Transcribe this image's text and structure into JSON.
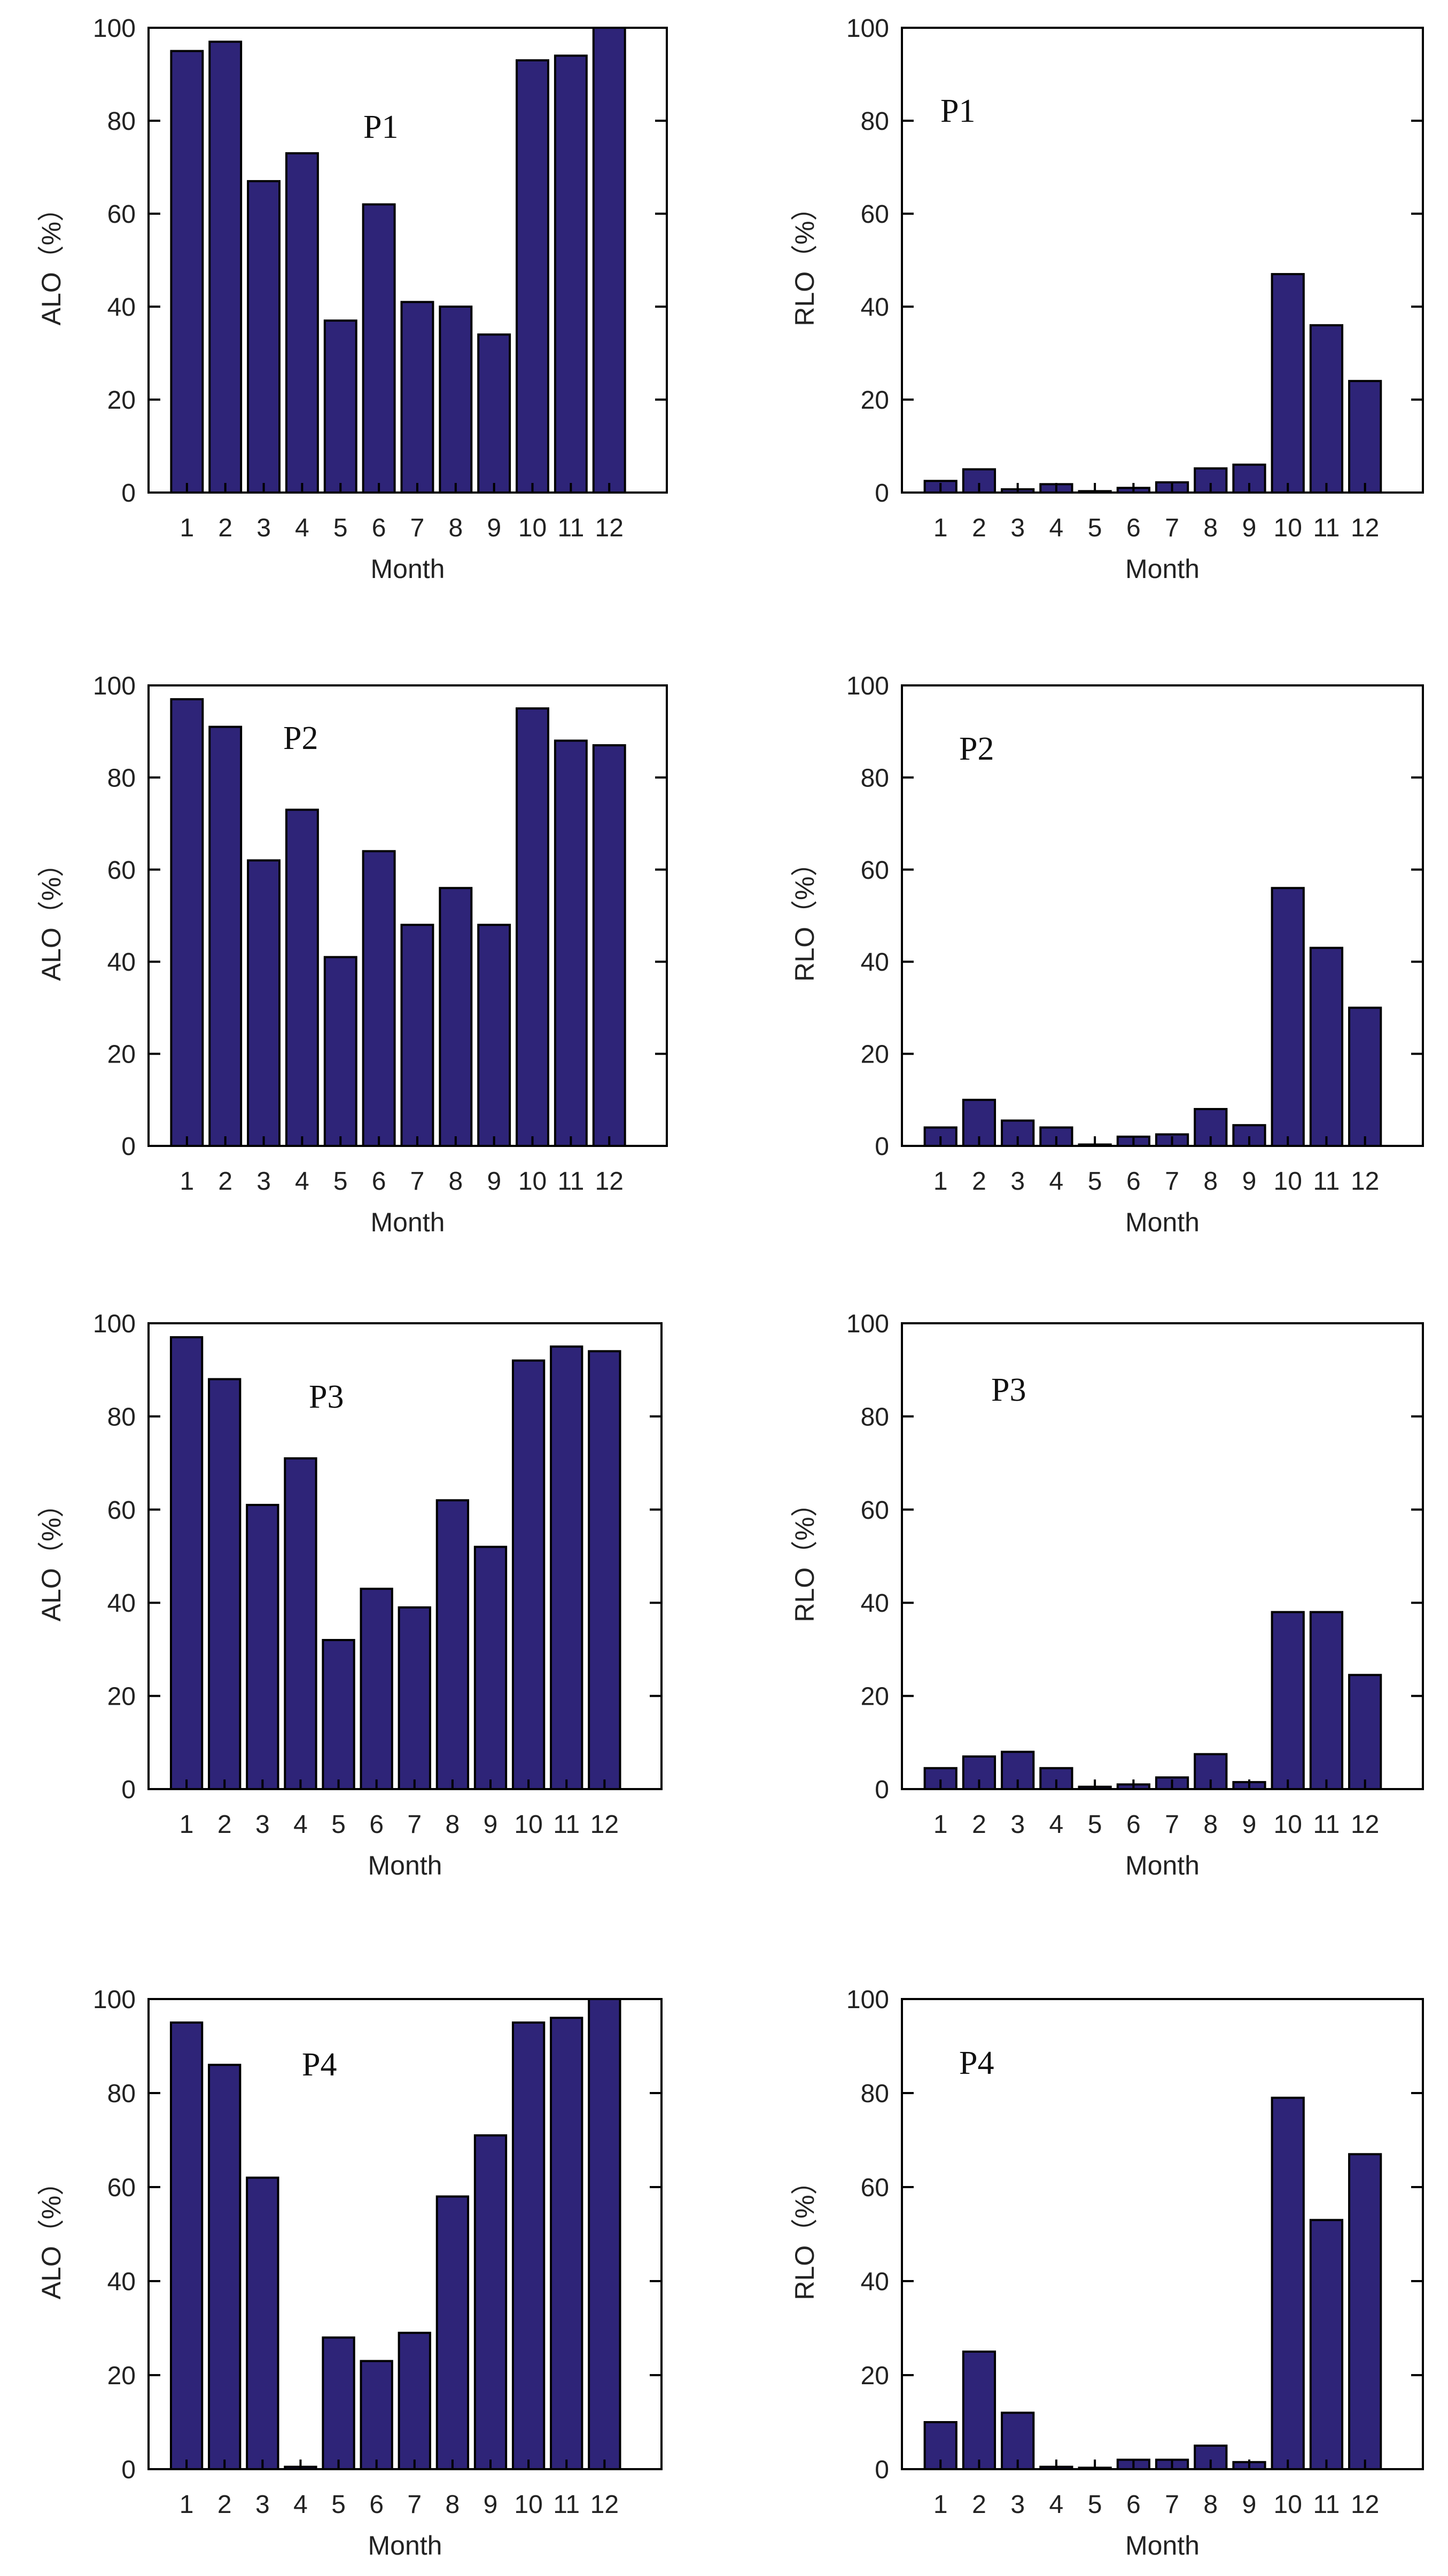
{
  "chart_data": [
    {
      "type": "bar",
      "id": "alo-p1",
      "panel_label": "P1",
      "xlabel": "Month",
      "ylabel": "ALO（%）",
      "categories": [
        "1",
        "2",
        "3",
        "4",
        "5",
        "6",
        "7",
        "8",
        "9",
        "10",
        "11",
        "12"
      ],
      "values": [
        95,
        97,
        67,
        73,
        37,
        62,
        41,
        40,
        34,
        93,
        94,
        100
      ],
      "ylim": [
        0,
        100
      ],
      "yticks": [
        "0",
        "20",
        "40",
        "60",
        "80",
        "100"
      ],
      "grid": false
    },
    {
      "type": "bar",
      "id": "rlo-p1",
      "panel_label": "P1",
      "xlabel": "Month",
      "ylabel": "RLO（%）",
      "categories": [
        "1",
        "2",
        "3",
        "4",
        "5",
        "6",
        "7",
        "8",
        "9",
        "10",
        "11",
        "12"
      ],
      "values": [
        2.5,
        5,
        0.7,
        1.8,
        0.3,
        1,
        2.2,
        5.2,
        6,
        47,
        36,
        24
      ],
      "ylim": [
        0,
        100
      ],
      "yticks": [
        "0",
        "20",
        "40",
        "60",
        "80",
        "100"
      ],
      "grid": false
    },
    {
      "type": "bar",
      "id": "alo-p2",
      "panel_label": "P2",
      "xlabel": "Month",
      "ylabel": "ALO（%）",
      "categories": [
        "1",
        "2",
        "3",
        "4",
        "5",
        "6",
        "7",
        "8",
        "9",
        "10",
        "11",
        "12"
      ],
      "values": [
        97,
        91,
        62,
        73,
        41,
        64,
        48,
        56,
        48,
        95,
        88,
        87
      ],
      "ylim": [
        0,
        100
      ],
      "yticks": [
        "0",
        "20",
        "40",
        "60",
        "80",
        "100"
      ],
      "grid": false
    },
    {
      "type": "bar",
      "id": "rlo-p2",
      "panel_label": "P2",
      "xlabel": "Month",
      "ylabel": "RLO（%）",
      "categories": [
        "1",
        "2",
        "3",
        "4",
        "5",
        "6",
        "7",
        "8",
        "9",
        "10",
        "11",
        "12"
      ],
      "values": [
        4,
        10,
        5.5,
        4,
        0.3,
        2,
        2.5,
        8,
        4.5,
        56,
        43,
        30
      ],
      "ylim": [
        0,
        100
      ],
      "yticks": [
        "0",
        "20",
        "40",
        "60",
        "80",
        "100"
      ],
      "grid": false
    },
    {
      "type": "bar",
      "id": "alo-p3",
      "panel_label": "P3",
      "xlabel": "Month",
      "ylabel": "ALO（%）",
      "categories": [
        "1",
        "2",
        "3",
        "4",
        "5",
        "6",
        "7",
        "8",
        "9",
        "10",
        "11",
        "12"
      ],
      "values": [
        97,
        88,
        61,
        71,
        32,
        43,
        39,
        62,
        52,
        92,
        95,
        94
      ],
      "ylim": [
        0,
        100
      ],
      "yticks": [
        "0",
        "20",
        "40",
        "60",
        "80",
        "100"
      ],
      "grid": false
    },
    {
      "type": "bar",
      "id": "rlo-p3",
      "panel_label": "P3",
      "xlabel": "Month",
      "ylabel": "RLO（%）",
      "categories": [
        "1",
        "2",
        "3",
        "4",
        "5",
        "6",
        "7",
        "8",
        "9",
        "10",
        "11",
        "12"
      ],
      "values": [
        4.5,
        7,
        8,
        4.5,
        0.5,
        1,
        2.5,
        7.5,
        1.5,
        38,
        38,
        24.5
      ],
      "ylim": [
        0,
        100
      ],
      "yticks": [
        "0",
        "20",
        "40",
        "60",
        "80",
        "100"
      ],
      "grid": false
    },
    {
      "type": "bar",
      "id": "alo-p4",
      "panel_label": "P4",
      "xlabel": "Month",
      "ylabel": "ALO（%）",
      "categories": [
        "1",
        "2",
        "3",
        "4",
        "5",
        "6",
        "7",
        "8",
        "9",
        "10",
        "11",
        "12"
      ],
      "values": [
        95,
        86,
        62,
        0.5,
        28,
        23,
        29,
        58,
        71,
        95,
        96,
        100
      ],
      "ylim": [
        0,
        100
      ],
      "yticks": [
        "0",
        "20",
        "40",
        "60",
        "80",
        "100"
      ],
      "grid": false
    },
    {
      "type": "bar",
      "id": "rlo-p4",
      "panel_label": "P4",
      "xlabel": "Month",
      "ylabel": "RLO（%）",
      "categories": [
        "1",
        "2",
        "3",
        "4",
        "5",
        "6",
        "7",
        "8",
        "9",
        "10",
        "11",
        "12"
      ],
      "values": [
        10,
        25,
        12,
        0.5,
        0.3,
        2,
        2,
        5,
        1.5,
        79,
        53,
        67
      ],
      "ylim": [
        0,
        100
      ],
      "yticks": [
        "0",
        "20",
        "40",
        "60",
        "80",
        "100"
      ],
      "grid": false
    }
  ],
  "colors": {
    "bar_fill": "#2e2478",
    "bar_edge": "#000000"
  }
}
